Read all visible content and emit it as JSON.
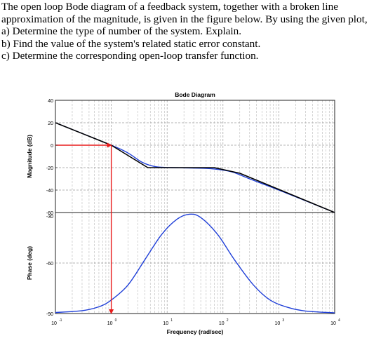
{
  "problem": {
    "intro": "The open loop Bode diagram of a feedback system, together with a broken line approximation of the magnitude, is given in the figure below. By using the given plot,",
    "items": [
      "a)  Determine the type of number of the system. Explain.",
      "b)  Find the value of the system's related static error constant.",
      "c)  Determine the corresponding open-loop transfer function."
    ]
  },
  "chart_data": {
    "type": "line",
    "title": "Bode Diagram",
    "xlabel": "Frequency (rad/sec)",
    "xscale": "log",
    "xlim": [
      0.1,
      10000
    ],
    "x_ticks": [
      "10",
      "10",
      "10",
      "10",
      "10",
      "10"
    ],
    "x_tick_exponents": [
      "-1",
      "0",
      "1",
      "2",
      "3",
      "4"
    ],
    "grid": true,
    "panels": [
      {
        "name": "magnitude",
        "ylabel": "Magnitude (dB)",
        "ylim": [
          -60,
          40
        ],
        "y_ticks": [
          "40",
          "20",
          "0",
          "-20",
          "-40",
          "-60"
        ],
        "series": [
          {
            "role": "asymptotic approximation",
            "color": "#000000",
            "points": [
              [
                0.1,
                20
              ],
              [
                1,
                0
              ],
              [
                4.5,
                -20
              ],
              [
                70,
                -20
              ],
              [
                200,
                -25
              ],
              [
                10000,
                -60
              ]
            ]
          },
          {
            "role": "exact magnitude",
            "color": "#1f3fd8",
            "points": [
              [
                0.1,
                20
              ],
              [
                1,
                0
              ],
              [
                2,
                -7
              ],
              [
                3.5,
                -15
              ],
              [
                6,
                -19
              ],
              [
                12,
                -20
              ],
              [
                40,
                -20.5
              ],
              [
                80,
                -21.5
              ],
              [
                150,
                -24
              ],
              [
                300,
                -30
              ],
              [
                1000,
                -40
              ],
              [
                10000,
                -60
              ]
            ]
          }
        ]
      },
      {
        "name": "phase",
        "ylabel": "Phase (deg)",
        "ylim": [
          -90,
          -30
        ],
        "y_ticks": [
          "-30",
          "-60",
          "-90"
        ],
        "series": [
          {
            "role": "phase",
            "color": "#1f3fd8",
            "points": [
              [
                0.1,
                -89.4
              ],
              [
                0.3,
                -88.3
              ],
              [
                0.6,
                -86
              ],
              [
                1,
                -82
              ],
              [
                2,
                -73
              ],
              [
                4,
                -58
              ],
              [
                8,
                -43
              ],
              [
                15,
                -34
              ],
              [
                25,
                -31
              ],
              [
                40,
                -33
              ],
              [
                80,
                -43
              ],
              [
                160,
                -58
              ],
              [
                350,
                -73
              ],
              [
                700,
                -82
              ],
              [
                1500,
                -86.5
              ],
              [
                3000,
                -88.5
              ],
              [
                10000,
                -89.6
              ]
            ]
          }
        ]
      }
    ],
    "annotation": {
      "color": "#e81c1c",
      "x": 1,
      "magnitude_db": 0,
      "description_lines": [
        "horizontal from 0 dB axis to crossover",
        "vertical down to frequency axis"
      ]
    }
  }
}
